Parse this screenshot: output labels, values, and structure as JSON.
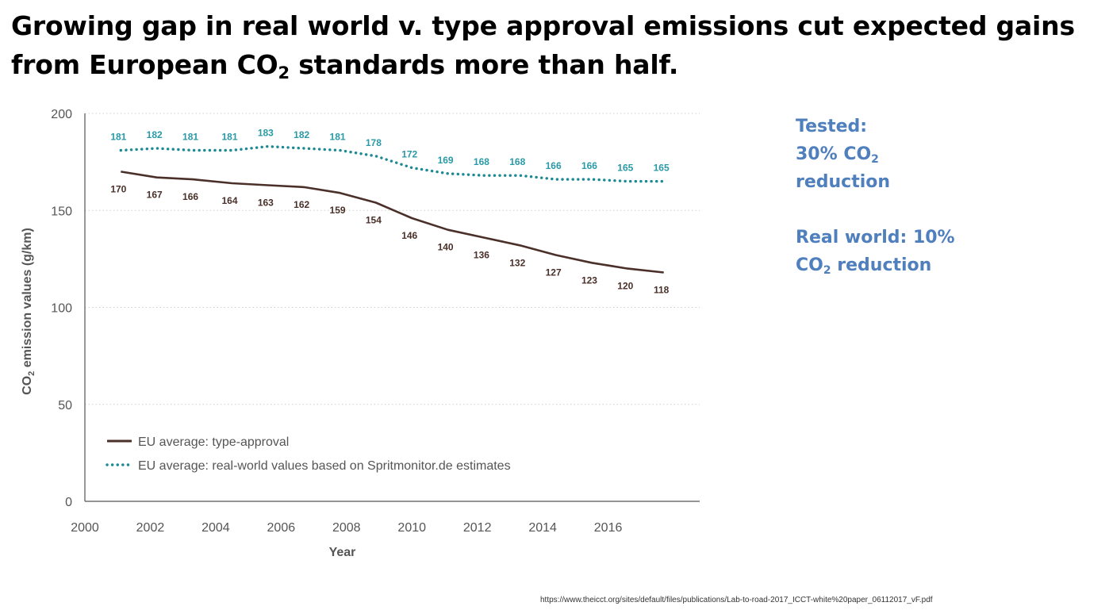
{
  "title": {
    "line1": "Growing gap in real world v. type approval emissions cut expected gains",
    "line2_pre": "from European CO",
    "line2_sub": "2",
    "line2_post": " standards more than half."
  },
  "annotations": {
    "tested_line1": "Tested:",
    "tested_line2_pre": "30% CO",
    "tested_line2_sub": "2",
    "tested_line3": "reduction",
    "real_line1": "Real world: 10%",
    "real_line2_pre": "CO",
    "real_line2_sub": "2",
    "real_line2_post": " reduction",
    "color": "#4f7fbd"
  },
  "source_url": "https://www.theicct.org/sites/default/files/publications/Lab-to-road-2017_ICCT-white%20paper_06112017_vF.pdf",
  "chart_data": {
    "type": "line",
    "xlabel": "Year",
    "ylabel_pre": "CO",
    "ylabel_sub": "2",
    "ylabel_post": " emission values (g/km)",
    "xlim": [
      2000,
      2018.8
    ],
    "ylim": [
      0,
      200
    ],
    "xticks": [
      2000,
      2002,
      2004,
      2006,
      2008,
      2010,
      2012,
      2014,
      2016
    ],
    "yticks": [
      0,
      50,
      100,
      150,
      200
    ],
    "grid": true,
    "legend_position": "bottom-left",
    "x": [
      2001.1,
      2002.2,
      2003.3,
      2004.5,
      2005.6,
      2006.7,
      2007.8,
      2008.9,
      2010.0,
      2011.1,
      2012.2,
      2013.3,
      2014.4,
      2015.5,
      2016.6,
      2017.7
    ],
    "series": [
      {
        "name": "EU average: type-approval",
        "style": "solid",
        "color": "#4a3029",
        "label_color": "#4a3029",
        "values": [
          170,
          167,
          166,
          164,
          163,
          162,
          159,
          154,
          146,
          140,
          136,
          132,
          127,
          123,
          120,
          118
        ]
      },
      {
        "name": "EU average: real-world values based on Spritmonitor.de estimates",
        "style": "dotted",
        "color": "#1c8a93",
        "label_color": "#2a9aa6",
        "values": [
          181,
          182,
          181,
          181,
          183,
          182,
          181,
          178,
          172,
          169,
          168,
          168,
          166,
          166,
          165,
          165
        ]
      }
    ]
  }
}
